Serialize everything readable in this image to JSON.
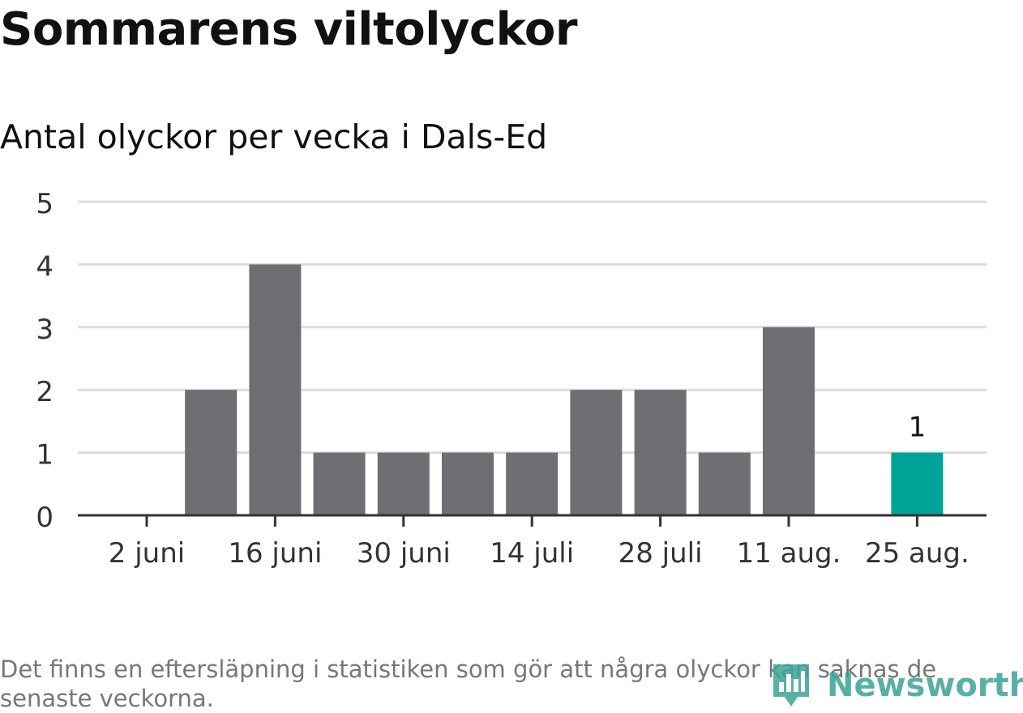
{
  "header": {
    "title": "Sommarens viltolyckor",
    "subtitle": "Antal olyckor per vecka i Dals-Ed"
  },
  "chart_data": {
    "type": "bar",
    "title": "Sommarens viltolyckor",
    "subtitle": "Antal olyckor per vecka i Dals-Ed",
    "xlabel": "",
    "ylabel": "",
    "x": [
      "2024-06-02",
      "2024-06-09",
      "2024-06-16",
      "2024-06-23",
      "2024-06-30",
      "2024-07-07",
      "2024-07-14",
      "2024-07-21",
      "2024-07-28",
      "2024-08-04",
      "2024-08-11",
      "2024-08-18",
      "2024-08-25"
    ],
    "values": [
      0,
      2,
      4,
      1,
      1,
      1,
      1,
      2,
      2,
      1,
      3,
      0,
      1
    ],
    "ylim": [
      0,
      5
    ],
    "yticks": [
      "0",
      "1",
      "2",
      "3",
      "4",
      "5"
    ],
    "xtick_labels": [
      {
        "x": "2024-06-02",
        "label": "2 juni"
      },
      {
        "x": "2024-06-16",
        "label": "16 juni"
      },
      {
        "x": "2024-06-30",
        "label": "30 juni"
      },
      {
        "x": "2024-07-14",
        "label": "14 juli"
      },
      {
        "x": "2024-07-28",
        "label": "28 juli"
      },
      {
        "x": "2024-08-11",
        "label": "11 aug."
      },
      {
        "x": "2024-08-25",
        "label": "25 aug."
      }
    ],
    "highlight": {
      "x": "2024-08-25",
      "label": "1"
    },
    "grid": true,
    "colors": {
      "bar": "#6f6e73",
      "highlight": "#00a398",
      "grid": "#dcdcdc",
      "axis": "#333333"
    }
  },
  "footer": {
    "note": "Det finns en eftersläpning i statistiken som gör att några olyckor kan saknas de senaste veckorna.",
    "brand": "Newsworthy",
    "brand_color": "#3aa396",
    "brand_icon": "bar-chart-pin-icon"
  }
}
